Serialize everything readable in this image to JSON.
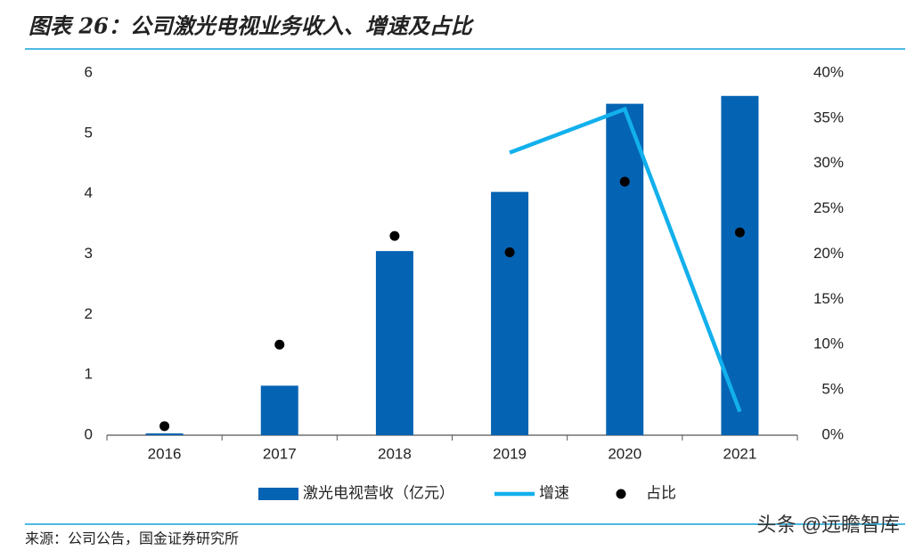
{
  "chart_data": {
    "type": "combo",
    "title": "图表 26：公司激光电视业务收入、增速及占比",
    "source": "来源：公司公告，国金证券研究所",
    "watermark": "头条 @远瞻智库",
    "categories": [
      "2016",
      "2017",
      "2018",
      "2019",
      "2020",
      "2021"
    ],
    "series": [
      {
        "name": "激光电视营收（亿元）",
        "type": "bar",
        "color": "#0563b3",
        "values": [
          0.03,
          0.82,
          3.05,
          4.03,
          5.49,
          5.62
        ]
      },
      {
        "name": "增速",
        "type": "line",
        "color": "#12b0ec",
        "axis": "y2",
        "values": [
          null,
          null,
          null,
          31.2,
          36.0,
          2.6
        ]
      },
      {
        "name": "占比",
        "type": "scatter",
        "color": "#000000",
        "axis": "y2",
        "values": [
          1.0,
          10.0,
          22.0,
          20.2,
          28.0,
          22.4
        ]
      }
    ],
    "ylim": [
      0,
      6
    ],
    "yticks": [
      0,
      1,
      2,
      3,
      4,
      5,
      6
    ],
    "y2lim": [
      0,
      40
    ],
    "y2ticks": [
      {
        "value": 0,
        "label": "0%"
      },
      {
        "value": 5,
        "label": "5%"
      },
      {
        "value": 10,
        "label": "10%"
      },
      {
        "value": 15,
        "label": "15%"
      },
      {
        "value": 20,
        "label": "20%"
      },
      {
        "value": 25,
        "label": "25%"
      },
      {
        "value": 30,
        "label": "30%"
      },
      {
        "value": 35,
        "label": "35%"
      },
      {
        "value": 40,
        "label": "40%"
      }
    ],
    "grid": false
  }
}
